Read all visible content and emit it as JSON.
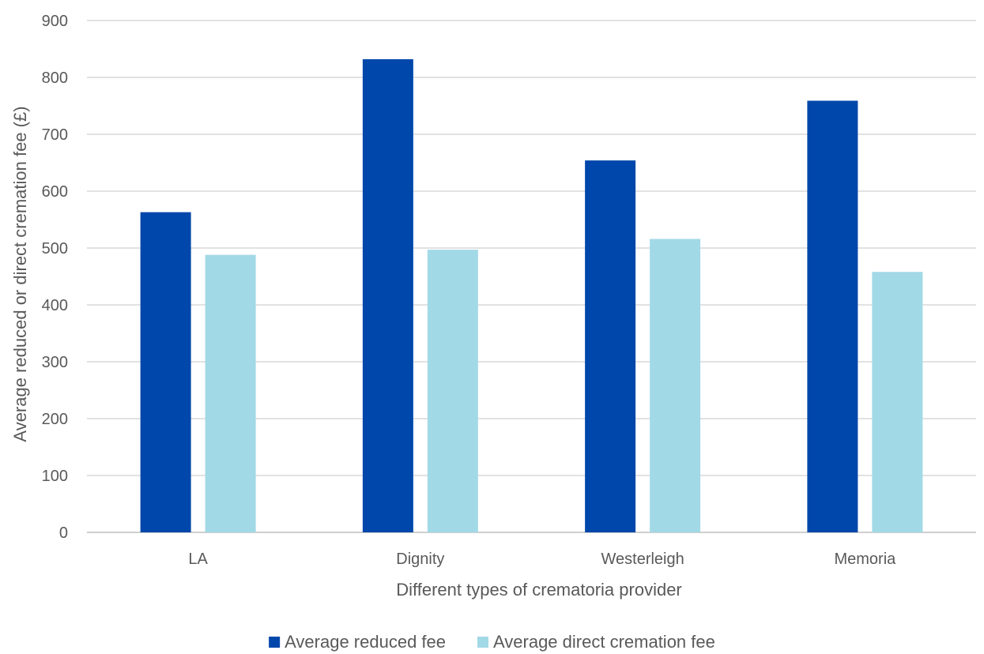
{
  "chart_data": {
    "type": "bar",
    "categories": [
      "LA",
      "Dignity",
      "Westerleigh",
      "Memoria"
    ],
    "series": [
      {
        "name": "Average reduced fee",
        "values": [
          563,
          832,
          654,
          759
        ],
        "color": "#0047ab"
      },
      {
        "name": "Average direct cremation fee",
        "values": [
          488,
          497,
          516,
          458
        ],
        "color": "#a2d9e6"
      }
    ],
    "xlabel": "Different types of crematoria provider",
    "ylabel": "Average reduced or direct cremation fee (£)",
    "ylim": [
      0,
      900
    ],
    "yticks": [
      0,
      100,
      200,
      300,
      400,
      500,
      600,
      700,
      800,
      900
    ],
    "grid": true,
    "legend_position": "bottom"
  }
}
